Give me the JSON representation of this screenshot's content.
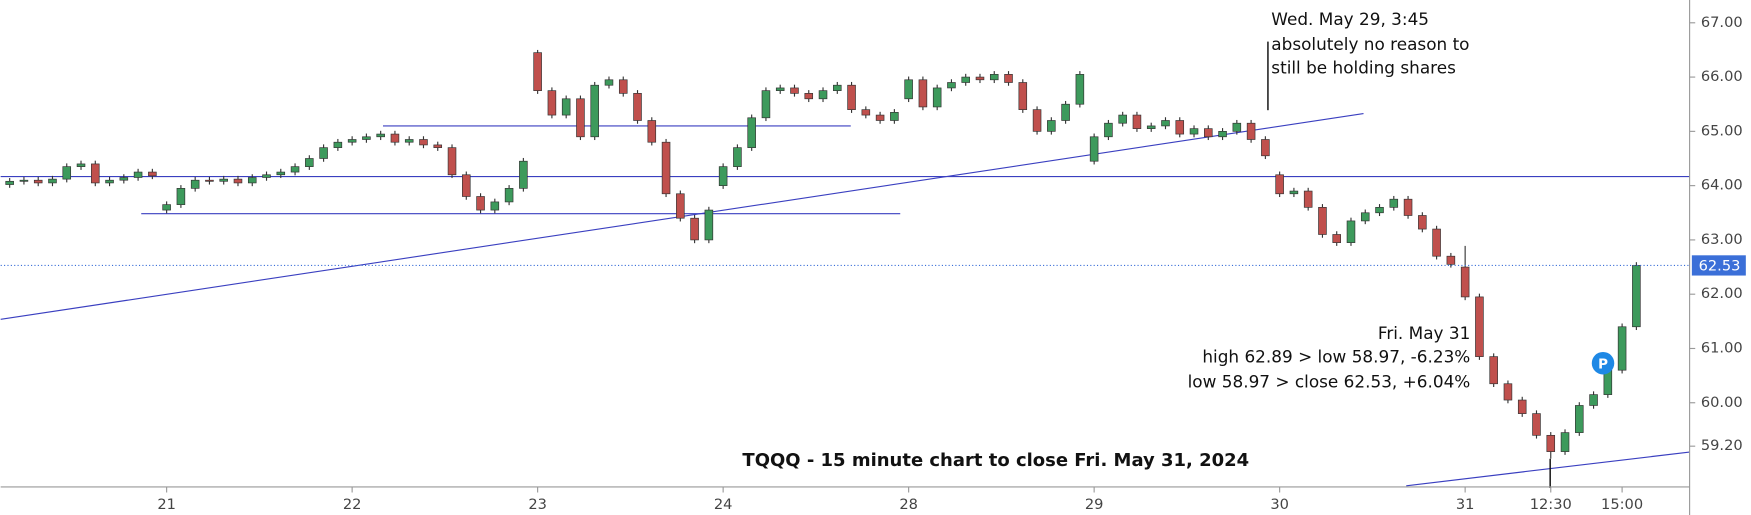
{
  "chart_data": {
    "type": "candlestick",
    "title": "TQQQ - 15 minute chart to close Fri. May 31, 2024",
    "annotations": [
      [
        "Wed. May 29, 3:45",
        "absolutely no reason to",
        "still be holding shares"
      ],
      [
        "Fri. May 31",
        "high 62.89 > low 58.97, -6.23%",
        "low 58.97 > close 62.53, +6.04%"
      ]
    ],
    "marker_label": "P",
    "categories": [
      null,
      null,
      null,
      null,
      null,
      null,
      null,
      null,
      null,
      null,
      null,
      "21",
      null,
      null,
      null,
      null,
      null,
      null,
      null,
      null,
      null,
      null,
      null,
      null,
      "22",
      null,
      null,
      null,
      null,
      null,
      null,
      null,
      null,
      null,
      null,
      null,
      null,
      "23",
      null,
      null,
      null,
      null,
      null,
      null,
      null,
      null,
      null,
      null,
      null,
      null,
      "24",
      null,
      null,
      null,
      null,
      null,
      null,
      null,
      null,
      null,
      null,
      null,
      null,
      "28",
      null,
      null,
      null,
      null,
      null,
      null,
      null,
      null,
      null,
      null,
      null,
      null,
      "29",
      null,
      null,
      null,
      null,
      null,
      null,
      null,
      null,
      null,
      null,
      null,
      null,
      "30",
      null,
      null,
      null,
      null,
      null,
      null,
      null,
      null,
      null,
      null,
      null,
      null,
      "31",
      null,
      null,
      null,
      null,
      null,
      "12:30",
      null,
      null,
      null,
      null,
      "15:00",
      null
    ],
    "open": [
      64.02,
      64.08,
      64.1,
      64.05,
      64.12,
      64.35,
      64.4,
      64.05,
      64.1,
      64.15,
      64.25,
      63.55,
      63.65,
      63.95,
      64.1,
      64.08,
      64.12,
      64.05,
      64.15,
      64.2,
      64.25,
      64.35,
      64.5,
      64.7,
      64.8,
      64.85,
      64.9,
      64.95,
      64.8,
      64.85,
      64.75,
      64.7,
      64.2,
      63.8,
      63.55,
      63.7,
      63.95,
      66.45,
      65.75,
      65.3,
      65.6,
      64.9,
      65.85,
      65.95,
      65.7,
      65.2,
      64.8,
      63.85,
      63.4,
      63.0,
      64.0,
      64.35,
      64.7,
      65.25,
      65.75,
      65.8,
      65.7,
      65.6,
      65.75,
      65.85,
      65.4,
      65.3,
      65.2,
      65.6,
      65.95,
      65.45,
      65.8,
      65.9,
      66.0,
      65.95,
      66.05,
      65.9,
      65.4,
      65.0,
      65.2,
      65.5,
      64.45,
      64.9,
      65.15,
      65.3,
      65.05,
      65.1,
      65.2,
      64.95,
      65.05,
      64.9,
      65.0,
      65.15,
      64.85,
      64.2,
      63.85,
      63.9,
      63.6,
      63.1,
      62.95,
      63.35,
      63.5,
      63.6,
      63.75,
      63.45,
      63.2,
      62.7,
      62.5,
      61.95,
      60.85,
      60.35,
      60.05,
      59.8,
      59.4,
      59.1,
      59.45,
      59.95,
      60.15,
      60.6,
      61.4
    ],
    "high": [
      64.14,
      64.16,
      64.16,
      64.18,
      64.41,
      64.46,
      64.46,
      64.16,
      64.21,
      64.31,
      64.31,
      63.71,
      64.01,
      64.16,
      64.16,
      64.18,
      64.18,
      64.21,
      64.26,
      64.31,
      64.41,
      64.56,
      64.76,
      64.86,
      64.91,
      64.96,
      65.01,
      65.01,
      64.91,
      64.91,
      64.81,
      64.76,
      64.26,
      63.86,
      63.76,
      64.01,
      64.51,
      66.5,
      65.81,
      65.66,
      65.66,
      65.91,
      66.01,
      66.01,
      65.76,
      65.26,
      64.86,
      63.91,
      63.46,
      63.61,
      64.41,
      64.76,
      65.31,
      65.81,
      65.86,
      65.86,
      65.76,
      65.81,
      65.91,
      65.91,
      65.46,
      65.36,
      65.41,
      66.01,
      66.01,
      65.86,
      65.96,
      66.06,
      66.06,
      66.11,
      66.11,
      65.96,
      65.46,
      65.26,
      65.56,
      66.11,
      64.96,
      65.21,
      65.36,
      65.36,
      65.16,
      65.26,
      65.26,
      65.11,
      65.11,
      65.06,
      65.21,
      65.21,
      64.91,
      64.26,
      63.96,
      63.96,
      63.66,
      63.16,
      63.41,
      63.56,
      63.66,
      63.81,
      63.81,
      63.51,
      63.26,
      62.76,
      62.89,
      62.01,
      60.91,
      60.41,
      60.11,
      59.86,
      59.46,
      59.51,
      60.01,
      60.21,
      60.66,
      61.46,
      62.59
    ],
    "low": [
      63.96,
      64.02,
      63.99,
      63.99,
      64.06,
      64.29,
      63.99,
      63.99,
      64.04,
      64.09,
      64.12,
      63.49,
      63.59,
      63.89,
      64.02,
      64.02,
      63.99,
      63.99,
      64.09,
      64.14,
      64.19,
      64.29,
      64.44,
      64.64,
      64.74,
      64.79,
      64.84,
      64.74,
      64.74,
      64.69,
      64.64,
      64.14,
      63.74,
      63.49,
      63.49,
      63.64,
      63.89,
      65.69,
      65.24,
      65.24,
      64.84,
      64.84,
      65.79,
      65.64,
      65.14,
      64.74,
      63.79,
      63.34,
      62.94,
      62.94,
      63.94,
      64.29,
      64.64,
      65.19,
      65.69,
      65.64,
      65.54,
      65.54,
      65.69,
      65.34,
      65.24,
      65.14,
      65.14,
      65.54,
      65.39,
      65.39,
      65.74,
      65.84,
      65.89,
      65.89,
      65.84,
      65.34,
      64.94,
      64.94,
      65.14,
      65.44,
      64.39,
      64.84,
      65.09,
      64.99,
      64.99,
      65.04,
      64.89,
      64.89,
      64.84,
      64.84,
      64.94,
      64.79,
      64.49,
      63.79,
      63.79,
      63.54,
      63.04,
      62.89,
      62.89,
      63.29,
      63.44,
      63.54,
      63.39,
      63.14,
      62.64,
      62.49,
      61.89,
      60.79,
      60.29,
      59.99,
      59.74,
      59.34,
      58.97,
      59.04,
      59.39,
      59.89,
      60.09,
      60.54,
      61.34
    ],
    "close": [
      64.08,
      64.1,
      64.05,
      64.12,
      64.35,
      64.4,
      64.05,
      64.1,
      64.15,
      64.25,
      64.18,
      63.65,
      63.95,
      64.1,
      64.08,
      64.12,
      64.05,
      64.15,
      64.2,
      64.25,
      64.35,
      64.5,
      64.7,
      64.8,
      64.85,
      64.9,
      64.95,
      64.8,
      64.85,
      64.75,
      64.7,
      64.2,
      63.8,
      63.55,
      63.7,
      63.95,
      64.45,
      65.75,
      65.3,
      65.6,
      64.9,
      65.85,
      65.95,
      65.7,
      65.2,
      64.8,
      63.85,
      63.4,
      63.0,
      63.55,
      64.35,
      64.7,
      65.25,
      65.75,
      65.8,
      65.7,
      65.6,
      65.75,
      65.85,
      65.4,
      65.3,
      65.2,
      65.35,
      65.95,
      65.45,
      65.8,
      65.9,
      66.0,
      65.95,
      66.05,
      65.9,
      65.4,
      65.0,
      65.2,
      65.5,
      66.05,
      64.9,
      65.15,
      65.3,
      65.05,
      65.1,
      65.2,
      64.95,
      65.05,
      64.9,
      65.0,
      65.15,
      64.85,
      64.55,
      63.85,
      63.9,
      63.6,
      63.1,
      62.95,
      63.35,
      63.5,
      63.6,
      63.75,
      63.45,
      63.2,
      62.7,
      62.55,
      61.95,
      60.85,
      60.35,
      60.05,
      59.8,
      59.4,
      59.1,
      59.45,
      59.95,
      60.15,
      60.6,
      61.4,
      62.53
    ],
    "up_color": "#3d9a5c",
    "down_color": "#c0504d",
    "last_price": 62.53,
    "last_price_color": "#3b6fd8",
    "ylim": [
      58.45,
      67.42
    ],
    "yticks": [
      {
        "value": 67,
        "label": "67.00"
      },
      {
        "value": 66,
        "label": "66.00"
      },
      {
        "value": 65,
        "label": "65.00"
      },
      {
        "value": 64,
        "label": "64.00"
      },
      {
        "value": 63,
        "label": "63.00"
      },
      {
        "value": 62,
        "label": "62.00"
      },
      {
        "value": 61,
        "label": "61.00"
      },
      {
        "value": 60,
        "label": "60.00"
      },
      {
        "value": 59.2,
        "label": "59.20"
      }
    ],
    "grid": false
  }
}
